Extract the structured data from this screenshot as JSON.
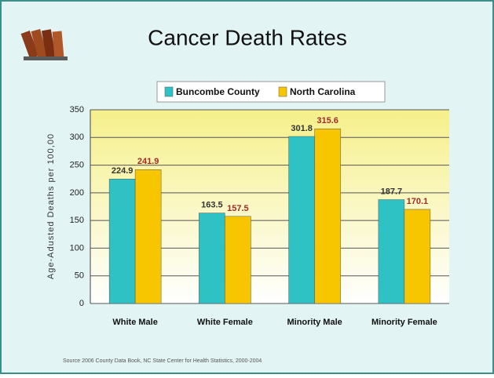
{
  "chart_data": {
    "type": "bar",
    "title": "Cancer Death Rates",
    "y_label": "Age-Adusted Deaths per 100,00",
    "source": "Source 2006 County Data Book, NC State Center for Health Statistics, 2000-2004",
    "categories": [
      "White Male",
      "White Female",
      "Minority Male",
      "Minority Female"
    ],
    "series": [
      {
        "name": "Buncombe County",
        "color": "#2fc2c4",
        "values": [
          224.9,
          163.5,
          301.8,
          187.7
        ]
      },
      {
        "name": "North Carolina",
        "color": "#f7c600",
        "values": [
          241.9,
          157.5,
          315.6,
          170.1
        ]
      }
    ],
    "ylim": [
      0,
      350
    ],
    "yticks": [
      0,
      50,
      100,
      150,
      200,
      250,
      300,
      350
    ],
    "grid": true
  }
}
